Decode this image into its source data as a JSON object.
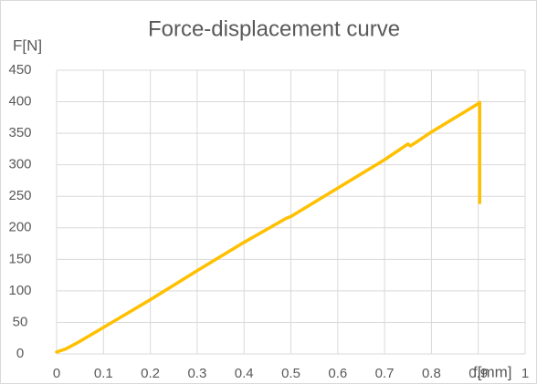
{
  "chart_data": {
    "type": "line",
    "title": "Force-displacement curve",
    "ylabel": "F[N]",
    "xlabel": "f[mm]",
    "x": [
      0,
      0.02,
      0.05,
      0.1,
      0.2,
      0.3,
      0.4,
      0.49,
      0.5,
      0.6,
      0.7,
      0.75,
      0.755,
      0.77,
      0.8,
      0.9,
      0.903,
      0.903
    ],
    "values": [
      3,
      8,
      20,
      42,
      86,
      132,
      177,
      215,
      218,
      263,
      308,
      333,
      330,
      337,
      352,
      397,
      399,
      240
    ],
    "color": "#ffc000",
    "xlim": [
      0,
      1
    ],
    "xticks": [
      0,
      0.1,
      0.2,
      0.3,
      0.4,
      0.5,
      0.6,
      0.7,
      0.8,
      0.9,
      1
    ],
    "ylim": [
      0,
      450
    ],
    "yticks": [
      0,
      50,
      100,
      150,
      200,
      250,
      300,
      350,
      400,
      450
    ],
    "grid": true
  }
}
